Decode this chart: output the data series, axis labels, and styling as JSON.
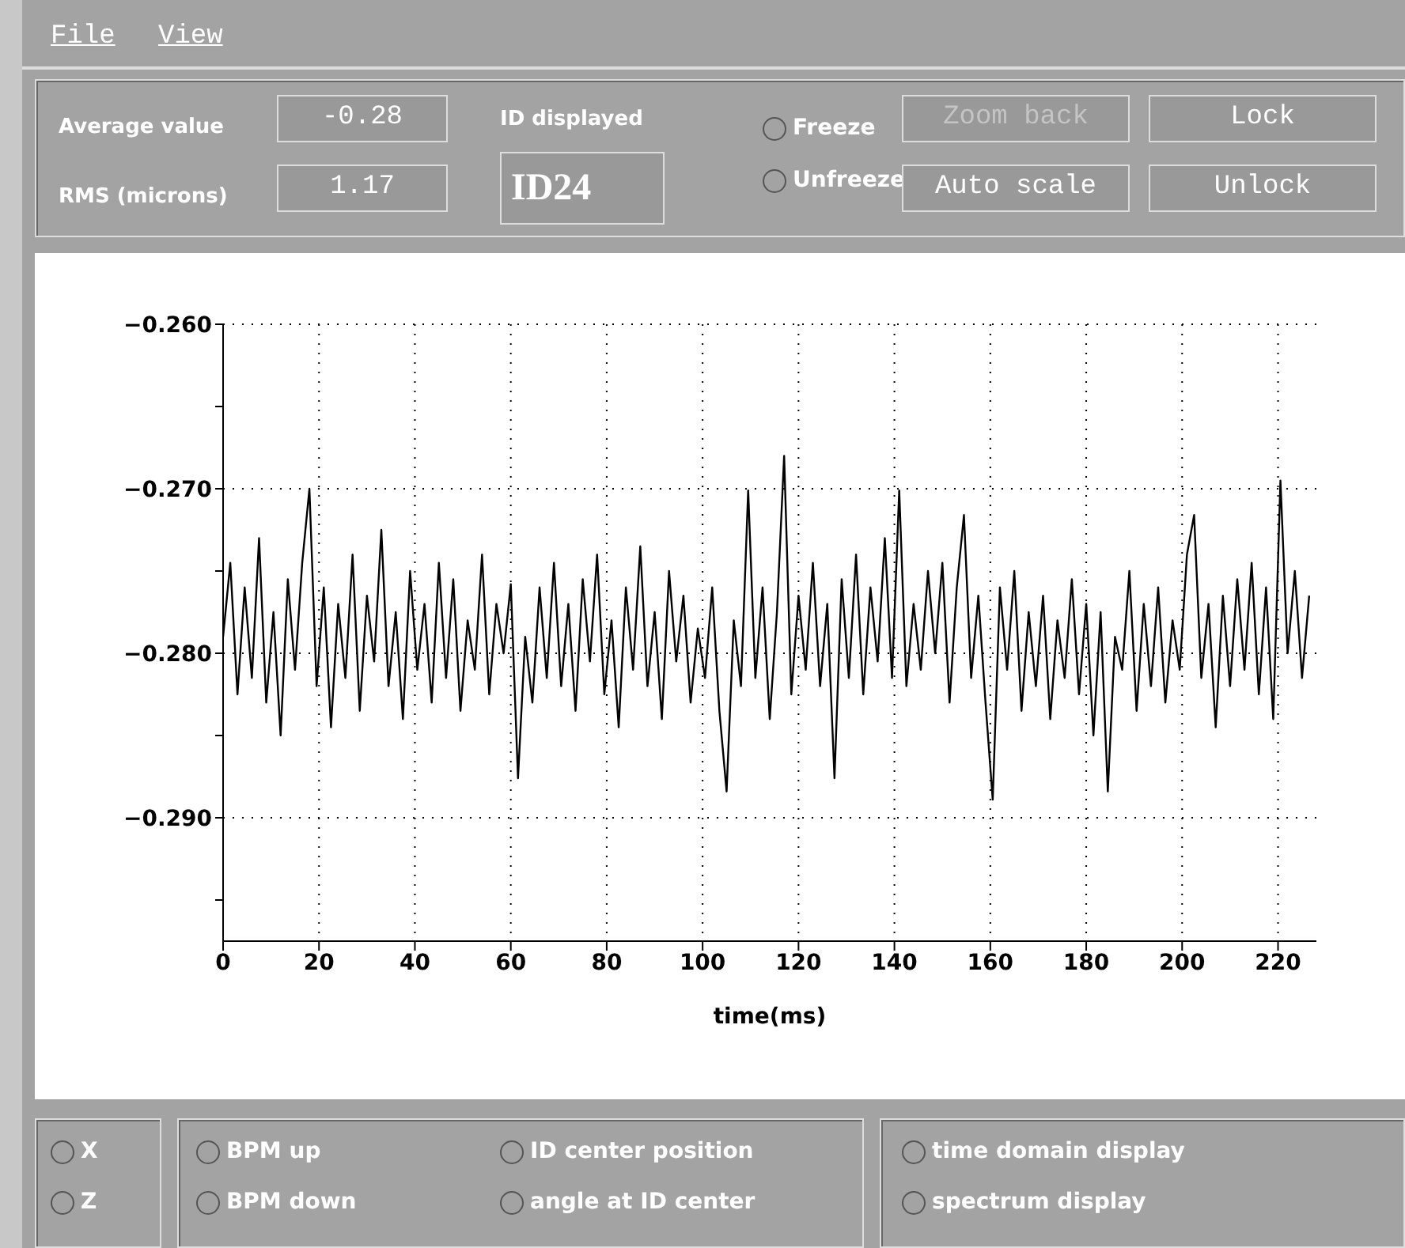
{
  "chart_data": {
    "type": "line",
    "xlabel": "time(ms)",
    "annotations": [
      "File",
      "View",
      "Average value",
      "-0.28",
      "ID displayed",
      "Freeze",
      "Zoom back",
      "Lock",
      "RMS (microns)",
      "1.17",
      "ID24",
      "Unfreeze",
      "Auto scale",
      "Unlock",
      "X",
      "Z",
      "BPM up",
      "BPM down",
      "ID center position",
      "angle at ID center",
      "time domain display",
      "spectrum display"
    ],
    "xlim": [
      0,
      228
    ],
    "xticks": [
      0,
      20,
      40,
      60,
      80,
      100,
      120,
      140,
      160,
      180,
      200,
      220
    ],
    "ylim": [
      -0.2975,
      -0.26
    ],
    "yticks": [
      {
        "value": -0.26,
        "label": "−0.260"
      },
      {
        "value": -0.265,
        "label": null
      },
      {
        "value": -0.27,
        "label": "−0.270"
      },
      {
        "value": -0.275,
        "label": null
      },
      {
        "value": -0.28,
        "label": "−0.280"
      },
      {
        "value": -0.285,
        "label": null
      },
      {
        "value": -0.29,
        "label": "−0.290"
      },
      {
        "value": -0.295,
        "label": null
      }
    ],
    "grid": true,
    "marker": "none",
    "line_style": "solid",
    "series": [
      {
        "color": "#000000",
        "x": [
          0,
          1.5,
          3,
          4.5,
          6,
          7.5,
          9,
          10.5,
          12,
          13.5,
          15,
          16.5,
          18,
          19.5,
          21,
          22.5,
          24,
          25.5,
          27,
          28.5,
          30,
          31.5,
          33,
          34.5,
          36,
          37.5,
          39,
          40.5,
          42,
          43.5,
          45,
          46.5,
          48,
          49.5,
          51,
          52.5,
          54,
          55.5,
          57,
          58.5,
          60,
          61.5,
          63,
          64.5,
          66,
          67.5,
          69,
          70.5,
          72,
          73.5,
          75,
          76.5,
          78,
          79.5,
          81,
          82.5,
          84,
          85.5,
          87,
          88.5,
          90,
          91.5,
          93,
          94.5,
          96,
          97.5,
          99,
          100.5,
          102,
          103.5,
          105,
          106.5,
          108,
          109.5,
          111,
          112.5,
          114,
          115.5,
          117,
          118.5,
          120,
          121.5,
          123,
          124.5,
          126,
          127.5,
          129,
          130.5,
          132,
          133.5,
          135,
          136.5,
          138,
          139.5,
          141,
          142.5,
          144,
          145.5,
          147,
          148.5,
          150,
          151.5,
          153,
          154.5,
          156,
          157.5,
          159,
          160.5,
          162,
          163.5,
          165,
          166.5,
          168,
          169.5,
          171,
          172.5,
          174,
          175.5,
          177,
          178.5,
          180,
          181.5,
          183,
          184.5,
          186,
          187.5,
          189,
          190.5,
          192,
          193.5,
          195,
          196.5,
          198,
          199.5,
          201,
          202.5,
          204,
          205.5,
          207,
          208.5,
          210,
          211.5,
          213,
          214.5,
          216,
          217.5,
          219,
          220.5,
          222,
          223.5,
          225,
          226.5
        ],
        "values": [
          -0.279,
          -0.2745,
          -0.2825,
          -0.276,
          -0.2815,
          -0.273,
          -0.283,
          -0.2775,
          -0.285,
          -0.2755,
          -0.281,
          -0.2745,
          -0.27,
          -0.282,
          -0.276,
          -0.2845,
          -0.277,
          -0.2815,
          -0.274,
          -0.2835,
          -0.2765,
          -0.2805,
          -0.2725,
          -0.282,
          -0.2775,
          -0.284,
          -0.275,
          -0.281,
          -0.277,
          -0.283,
          -0.2745,
          -0.2815,
          -0.2755,
          -0.2835,
          -0.278,
          -0.281,
          -0.274,
          -0.2825,
          -0.277,
          -0.28,
          -0.2758,
          -0.2876,
          -0.279,
          -0.283,
          -0.276,
          -0.2815,
          -0.2745,
          -0.282,
          -0.277,
          -0.2835,
          -0.2755,
          -0.2805,
          -0.274,
          -0.2825,
          -0.278,
          -0.2845,
          -0.276,
          -0.281,
          -0.2735,
          -0.282,
          -0.2775,
          -0.284,
          -0.275,
          -0.2805,
          -0.2765,
          -0.283,
          -0.2785,
          -0.2815,
          -0.276,
          -0.2835,
          -0.2884,
          -0.278,
          -0.282,
          -0.2701,
          -0.2815,
          -0.276,
          -0.284,
          -0.2775,
          -0.268,
          -0.2825,
          -0.2765,
          -0.281,
          -0.2745,
          -0.282,
          -0.277,
          -0.2876,
          -0.2755,
          -0.2815,
          -0.274,
          -0.2825,
          -0.276,
          -0.2805,
          -0.273,
          -0.2815,
          -0.2701,
          -0.282,
          -0.277,
          -0.281,
          -0.275,
          -0.28,
          -0.2745,
          -0.283,
          -0.276,
          -0.2716,
          -0.2815,
          -0.2765,
          -0.283,
          -0.2889,
          -0.276,
          -0.281,
          -0.275,
          -0.2835,
          -0.2775,
          -0.282,
          -0.2765,
          -0.284,
          -0.278,
          -0.2815,
          -0.2755,
          -0.2825,
          -0.277,
          -0.285,
          -0.2775,
          -0.2884,
          -0.279,
          -0.281,
          -0.275,
          -0.2835,
          -0.277,
          -0.282,
          -0.276,
          -0.283,
          -0.278,
          -0.281,
          -0.274,
          -0.2716,
          -0.2815,
          -0.277,
          -0.2845,
          -0.2765,
          -0.282,
          -0.2755,
          -0.281,
          -0.2745,
          -0.2825,
          -0.276,
          -0.284,
          -0.2695,
          -0.28,
          -0.275,
          -0.2815,
          -0.2765
        ]
      }
    ]
  }
}
